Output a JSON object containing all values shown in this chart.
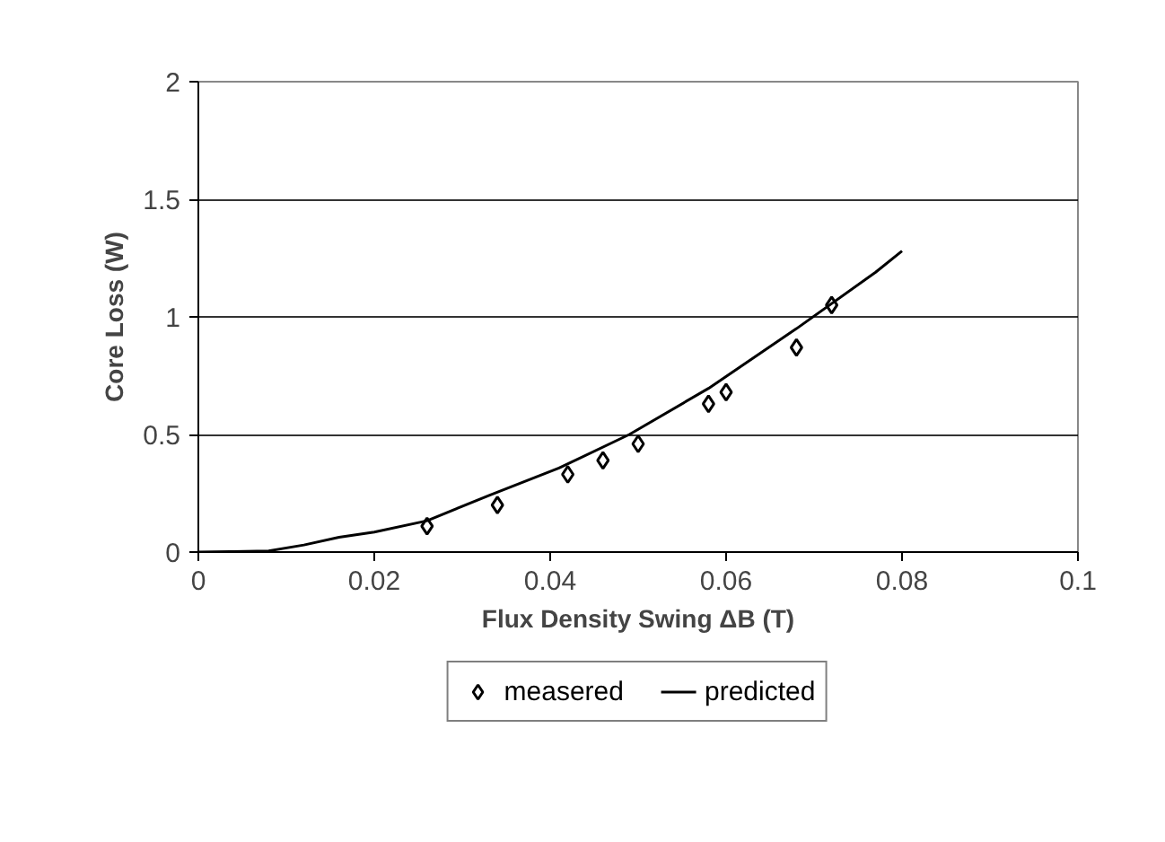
{
  "chart_data": {
    "type": "scatter",
    "xlabel": "Flux Density Swing ΔB (T)",
    "ylabel": "Core Loss (W)",
    "xlim": [
      0,
      0.1
    ],
    "ylim": [
      0,
      2
    ],
    "xticks": [
      0,
      0.02,
      0.04,
      0.06,
      0.08,
      0.1
    ],
    "yticks": [
      0,
      0.5,
      1,
      1.5,
      2
    ],
    "grid": "y",
    "legend": "bottom",
    "series": [
      {
        "name": "measered",
        "marker": "diamond",
        "color": "#000000",
        "x": [
          0.026,
          0.034,
          0.042,
          0.046,
          0.05,
          0.058,
          0.06,
          0.068,
          0.072
        ],
        "values": [
          0.11,
          0.2,
          0.33,
          0.39,
          0.46,
          0.63,
          0.68,
          0.87,
          1.05
        ]
      },
      {
        "name": "predicted",
        "type": "line",
        "marker": "none",
        "color": "#000000",
        "x": [
          0,
          0.004,
          0.008,
          0.012,
          0.016,
          0.02,
          0.026,
          0.033,
          0.041,
          0.049,
          0.058,
          0.068,
          0.077,
          0.08
        ],
        "values": [
          0,
          0.002,
          0.005,
          0.03,
          0.063,
          0.085,
          0.133,
          0.24,
          0.357,
          0.5,
          0.696,
          0.95,
          1.19,
          1.28
        ]
      }
    ]
  }
}
